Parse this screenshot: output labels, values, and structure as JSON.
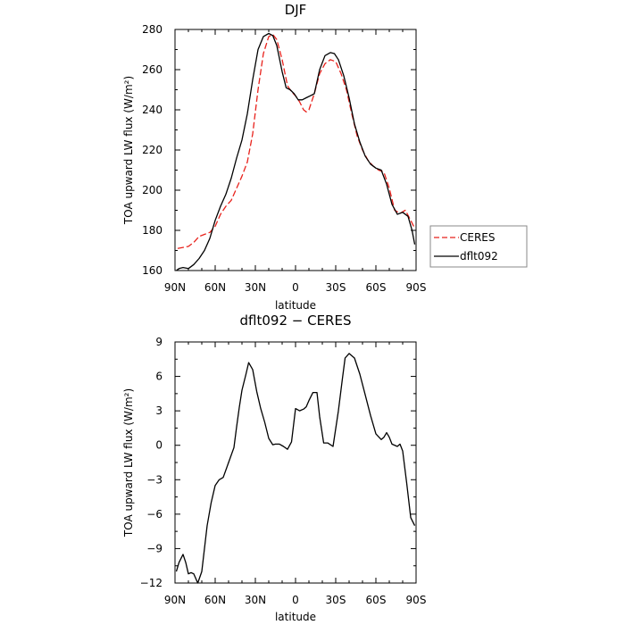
{
  "chart_data": [
    {
      "type": "line",
      "title": "DJF",
      "xlabel": "latitude",
      "ylabel": "TOA upward LW flux (W/m²)",
      "x_ticks": [
        -90,
        -60,
        -30,
        0,
        30,
        60,
        90
      ],
      "x_tick_labels": [
        "90N",
        "60N",
        "30N",
        "0",
        "30S",
        "60S",
        "90S"
      ],
      "y_ticks": [
        160,
        180,
        200,
        220,
        240,
        260,
        280
      ],
      "y_tick_labels": [
        "160",
        "180",
        "200",
        "220",
        "240",
        "260",
        "280"
      ],
      "xlim": [
        -90,
        90
      ],
      "ylim": [
        160,
        280
      ],
      "grid": false,
      "legend": "right-outside",
      "series": [
        {
          "name": "CERES",
          "color": "#e8221c",
          "style": "dashed",
          "x": [
            -88,
            -84,
            -80,
            -76,
            -72,
            -68,
            -64,
            -60,
            -56,
            -52,
            -48,
            -44,
            -40,
            -36,
            -32,
            -28,
            -24,
            -20,
            -17,
            -14,
            -10,
            -6,
            -3,
            0,
            3,
            6,
            8,
            10,
            14,
            18,
            22,
            26,
            30,
            34,
            38,
            42,
            46,
            50,
            54,
            58,
            62,
            66,
            70,
            74,
            78,
            82,
            86,
            89
          ],
          "y": [
            171,
            171.5,
            172,
            174,
            177,
            178,
            179,
            182,
            188,
            192,
            195,
            201,
            207,
            214,
            228,
            250,
            268,
            276.5,
            277.5,
            275,
            265,
            252,
            249,
            247,
            244,
            240,
            239,
            240,
            248,
            258,
            263,
            265,
            264,
            258,
            250,
            238,
            227,
            220,
            215,
            212,
            210,
            209,
            201,
            190,
            188.5,
            190,
            185,
            181
          ]
        },
        {
          "name": "dflt092",
          "color": "#000000",
          "style": "solid",
          "x": [
            -89,
            -87,
            -84,
            -80,
            -76,
            -72,
            -68,
            -64,
            -60,
            -56,
            -52,
            -48,
            -44,
            -40,
            -36,
            -32,
            -28,
            -24,
            -20,
            -17,
            -14,
            -10,
            -7,
            -4,
            -1,
            2,
            5,
            8,
            11,
            14,
            18,
            22,
            26,
            29,
            32,
            36,
            40,
            44,
            48,
            52,
            56,
            60,
            64,
            68,
            72,
            76,
            80,
            84,
            87,
            89
          ],
          "y": [
            160,
            161,
            161.5,
            161,
            163,
            166,
            170,
            176,
            185,
            192,
            198,
            206,
            216,
            225,
            238,
            255,
            270,
            276.5,
            278,
            277,
            272,
            259,
            251,
            250,
            248,
            245,
            245,
            246,
            247,
            248,
            260,
            267,
            268.5,
            268,
            265,
            257,
            246,
            233,
            224,
            217,
            213,
            211,
            210,
            203,
            193,
            188,
            189,
            187,
            180,
            173
          ]
        }
      ]
    },
    {
      "type": "line",
      "title": "dflt092 − CERES",
      "xlabel": "latitude",
      "ylabel": "TOA upward LW flux (W/m²)",
      "x_ticks": [
        -90,
        -60,
        -30,
        0,
        30,
        60,
        90
      ],
      "x_tick_labels": [
        "90N",
        "60N",
        "30N",
        "0",
        "30S",
        "60S",
        "90S"
      ],
      "y_ticks": [
        -12,
        -9,
        -6,
        -3,
        0,
        3,
        6,
        9
      ],
      "y_tick_labels": [
        "−12",
        "−9",
        "−6",
        "−3",
        "0",
        "3",
        "6",
        "9"
      ],
      "xlim": [
        -90,
        90
      ],
      "ylim": [
        -12,
        9
      ],
      "grid": false,
      "legend": "none",
      "series": [
        {
          "color": "#000000",
          "style": "solid",
          "x": [
            -89,
            -87,
            -84,
            -82,
            -80,
            -78,
            -76,
            -73,
            -70,
            -66,
            -63,
            -60,
            -57,
            -54,
            -50,
            -46,
            -44,
            -42,
            -40,
            -37,
            -35,
            -32,
            -29,
            -26,
            -23,
            -20,
            -17,
            -15,
            -12,
            -9,
            -6,
            -3,
            0,
            3,
            6,
            8,
            10,
            13,
            16,
            18,
            21,
            24,
            28,
            32,
            35,
            37,
            40,
            44,
            48,
            52,
            56,
            60,
            64,
            66,
            68,
            70,
            72,
            76,
            78,
            80,
            83,
            86,
            89
          ],
          "y": [
            -11,
            -10.2,
            -9.5,
            -10.2,
            -11.2,
            -11.1,
            -11.2,
            -12,
            -11,
            -7,
            -5,
            -3.5,
            -3,
            -2.8,
            -1.5,
            -0.2,
            1.6,
            3.3,
            4.8,
            6.2,
            7.2,
            6.6,
            4.7,
            3.2,
            2,
            0.6,
            0.05,
            0.1,
            0.1,
            -0.1,
            -0.35,
            0.3,
            3.2,
            3.0,
            3.15,
            3.35,
            3.9,
            4.6,
            4.6,
            2.5,
            0.2,
            0.2,
            -0.1,
            3.0,
            5.8,
            7.6,
            8.0,
            7.6,
            6.2,
            4.4,
            2.6,
            1.0,
            0.5,
            0.7,
            1.1,
            0.7,
            0.1,
            -0.1,
            0.1,
            -0.5,
            -3.3,
            -6.3,
            -7
          ]
        }
      ]
    }
  ]
}
